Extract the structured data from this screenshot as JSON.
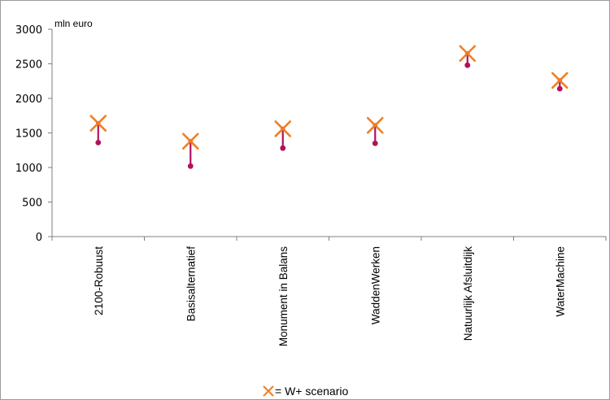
{
  "chart_data": {
    "type": "scatter",
    "ylabel": "mln euro",
    "ylim": [
      0,
      3000
    ],
    "yticks": [
      0,
      500,
      1000,
      1500,
      2000,
      2500,
      3000
    ],
    "categories": [
      "2100-Robuust",
      "Basisalternatief",
      "Monument in Balans",
      "WaddenWerken",
      "Natuurlijk Afsluitdijk",
      "WaterMachine"
    ],
    "series": [
      {
        "name": "W+ scenario",
        "marker": "x",
        "values": [
          1640,
          1380,
          1560,
          1610,
          2650,
          2260
        ]
      },
      {
        "marker": "dot-stem",
        "values": [
          1360,
          1020,
          1280,
          1350,
          2480,
          2140
        ]
      }
    ],
    "legend": {
      "position": "bottom-center",
      "symbol": "×",
      "text": "= W+ scenario"
    },
    "grid": false,
    "colors": {
      "x_marker": "#F07F23",
      "dot_stem": "#B0125C",
      "axis": "#7F7F7F",
      "frame": "#9A9A9A"
    }
  }
}
